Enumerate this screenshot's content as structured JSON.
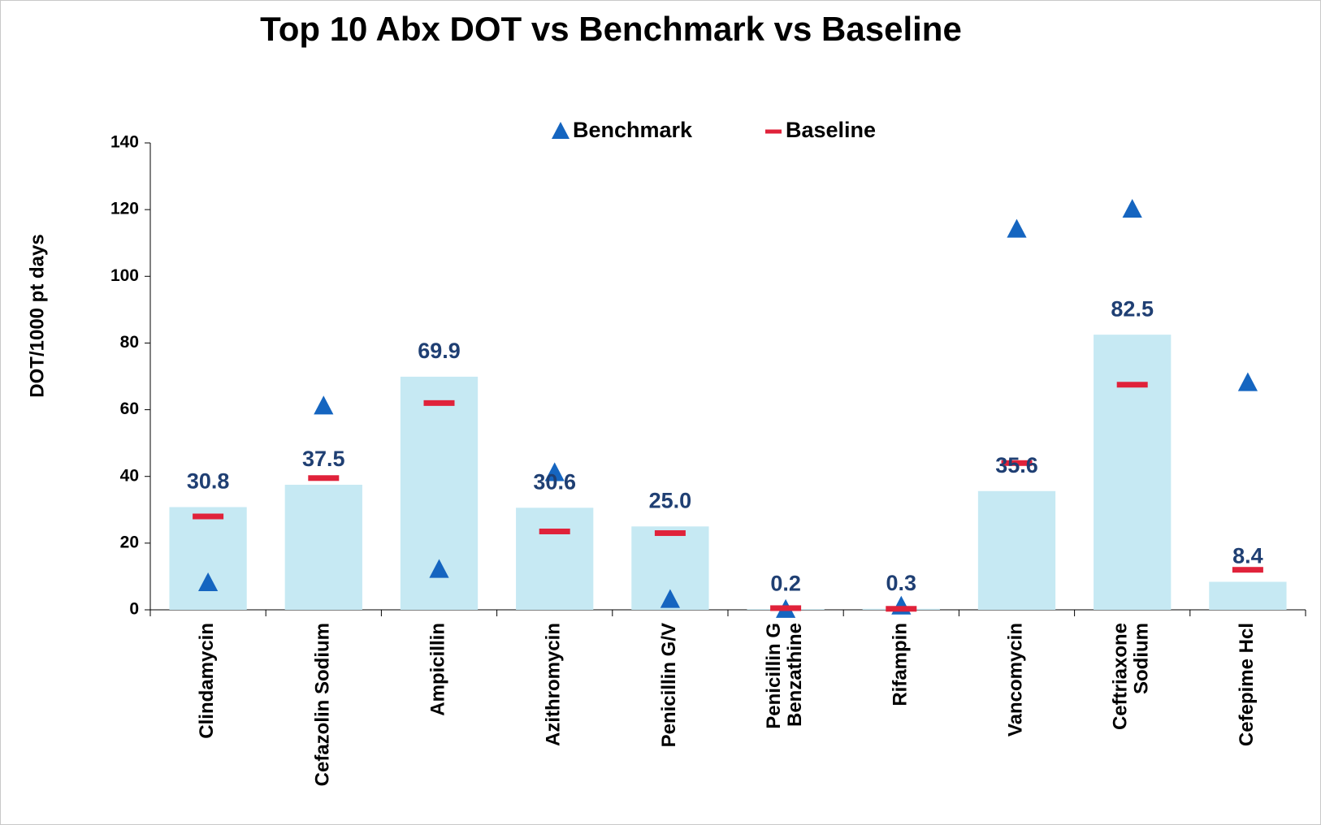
{
  "chart_data": {
    "type": "bar",
    "title": "Top 10 Abx DOT vs Benchmark vs Baseline",
    "y_label": "DOT/1000 pt days",
    "categories": [
      "Clindamycin",
      "Cefazolin Sodium",
      "Ampicillin",
      "Azithromycin",
      "Penicillin G/V",
      "Penicillin G\nBenzathine",
      "Rifampin",
      "Vancomycin",
      "Ceftriaxone\nSodium",
      "Cefepime Hcl"
    ],
    "values": [
      30.8,
      37.5,
      69.9,
      30.6,
      25.0,
      0.2,
      0.3,
      35.6,
      82.5,
      8.4
    ],
    "value_labels": [
      "30.8",
      "37.5",
      "69.9",
      "30.6",
      "25.0",
      "0.2",
      "0.3",
      "35.6",
      "82.5",
      "8.4"
    ],
    "color": "#c6e9f3",
    "series": [
      {
        "name": "Benchmark",
        "color": "#1565c0",
        "marker": "triangle",
        "values": [
          8,
          61,
          12,
          41,
          3,
          0,
          1,
          114,
          120,
          68
        ]
      },
      {
        "name": "Baseline",
        "color": "#e0223a",
        "marker": "dash",
        "values": [
          28,
          39.5,
          62,
          23.5,
          23,
          0.5,
          0.3,
          44,
          67.5,
          12
        ]
      }
    ],
    "ylim": [
      0,
      140
    ],
    "yticks": [
      0,
      20,
      40,
      60,
      80,
      100,
      120,
      140
    ],
    "grid": false,
    "legend": "top"
  }
}
